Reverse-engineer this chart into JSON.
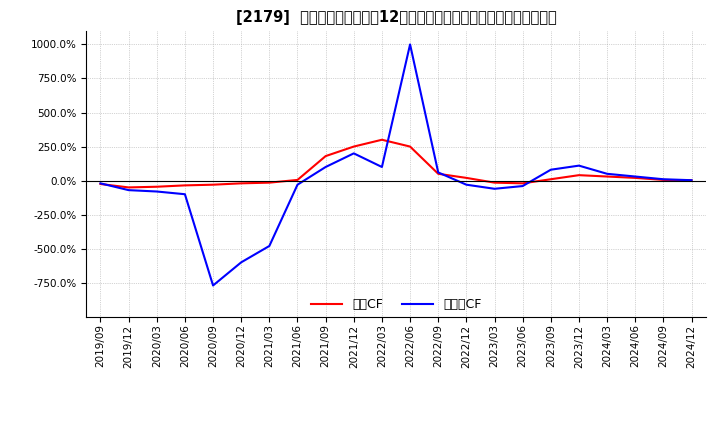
{
  "title": "[2179]  キャッシュフローの12か月移動合計の対前年同期増減率の推移",
  "ylim": [
    -1000,
    1100
  ],
  "yticks": [
    -750,
    -500,
    -250,
    0,
    250,
    500,
    750,
    1000
  ],
  "legend_labels": [
    "営業CF",
    "フリーCF"
  ],
  "dates": [
    "2019/09",
    "2019/12",
    "2020/03",
    "2020/06",
    "2020/09",
    "2020/12",
    "2021/03",
    "2021/06",
    "2021/09",
    "2021/12",
    "2022/03",
    "2022/06",
    "2022/09",
    "2022/12",
    "2023/03",
    "2023/06",
    "2023/09",
    "2023/12",
    "2024/03",
    "2024/06",
    "2024/09",
    "2024/12"
  ],
  "operating_cf": [
    -25,
    -50,
    -45,
    -35,
    -30,
    -20,
    -15,
    5,
    180,
    250,
    300,
    250,
    50,
    20,
    -15,
    -20,
    10,
    40,
    30,
    20,
    5,
    2
  ],
  "free_cf": [
    -20,
    -70,
    -80,
    -100,
    -770,
    -600,
    -480,
    -30,
    100,
    200,
    100,
    1000,
    60,
    -30,
    -60,
    -40,
    80,
    110,
    50,
    30,
    10,
    3
  ],
  "operating_color": "#ff0000",
  "free_color": "#0000ff",
  "bg_color": "#ffffff",
  "grid_color": "#aaaaaa",
  "grid_style": ":"
}
